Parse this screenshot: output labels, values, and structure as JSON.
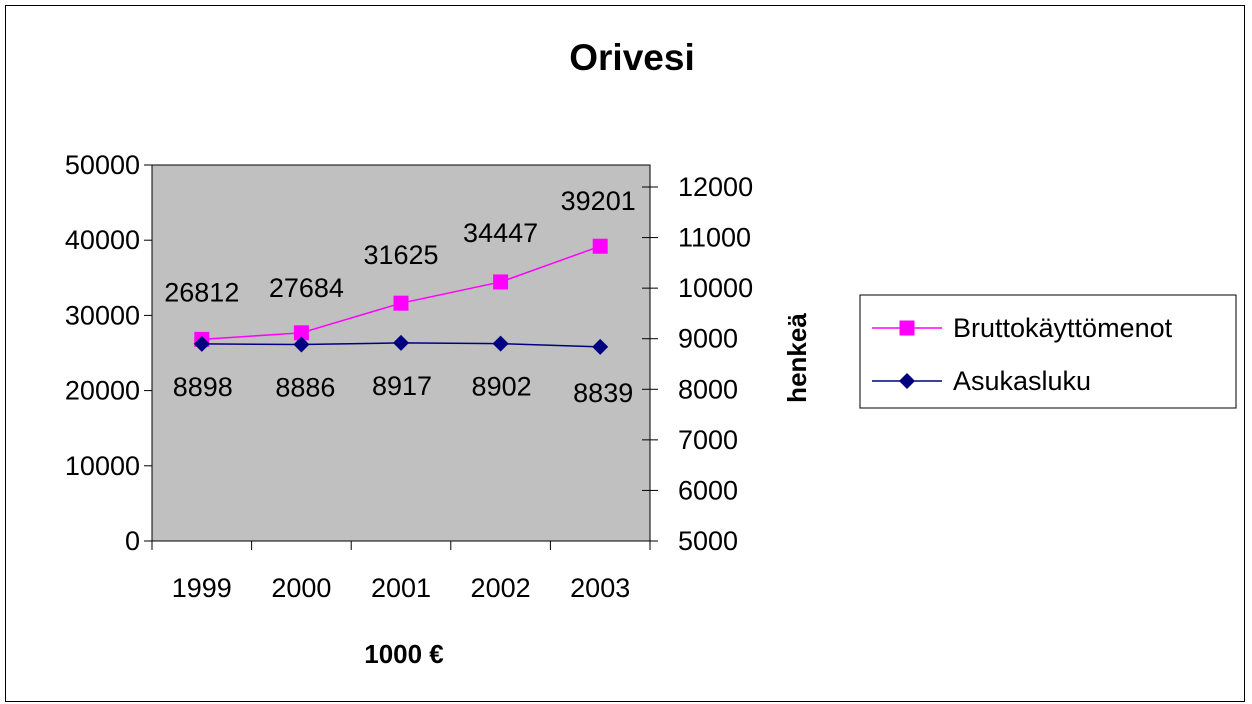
{
  "chart_data": {
    "type": "line",
    "title": "Orivesi",
    "categories": [
      "1999",
      "2000",
      "2001",
      "2002",
      "2003"
    ],
    "xlabel": "1000 €",
    "ylabel": "",
    "y2label": "henkeä",
    "ylim": [
      0,
      50000
    ],
    "y_ticks": [
      "0",
      "10000",
      "20000",
      "30000",
      "40000",
      "50000"
    ],
    "y2lim": [
      5000,
      12000
    ],
    "y2_ticks": [
      "5000",
      "6000",
      "7000",
      "8000",
      "9000",
      "10000",
      "11000",
      "12000"
    ],
    "grid": false,
    "legend_position": "right",
    "plot_background": "#c0c0c0",
    "series": [
      {
        "name": "Bruttokäyttömenot",
        "axis": "left",
        "color": "#ff00ff",
        "marker": "square",
        "values": [
          26812,
          27684,
          31625,
          34447,
          39201
        ],
        "labels": [
          "26812",
          "27684",
          "31625",
          "34447",
          "39201"
        ]
      },
      {
        "name": "Asukasluku",
        "axis": "right",
        "color": "#000080",
        "marker": "diamond",
        "values": [
          8898,
          8886,
          8917,
          8902,
          8839
        ],
        "labels": [
          "8898",
          "8886",
          "8917",
          "8902",
          "8839"
        ]
      }
    ]
  }
}
